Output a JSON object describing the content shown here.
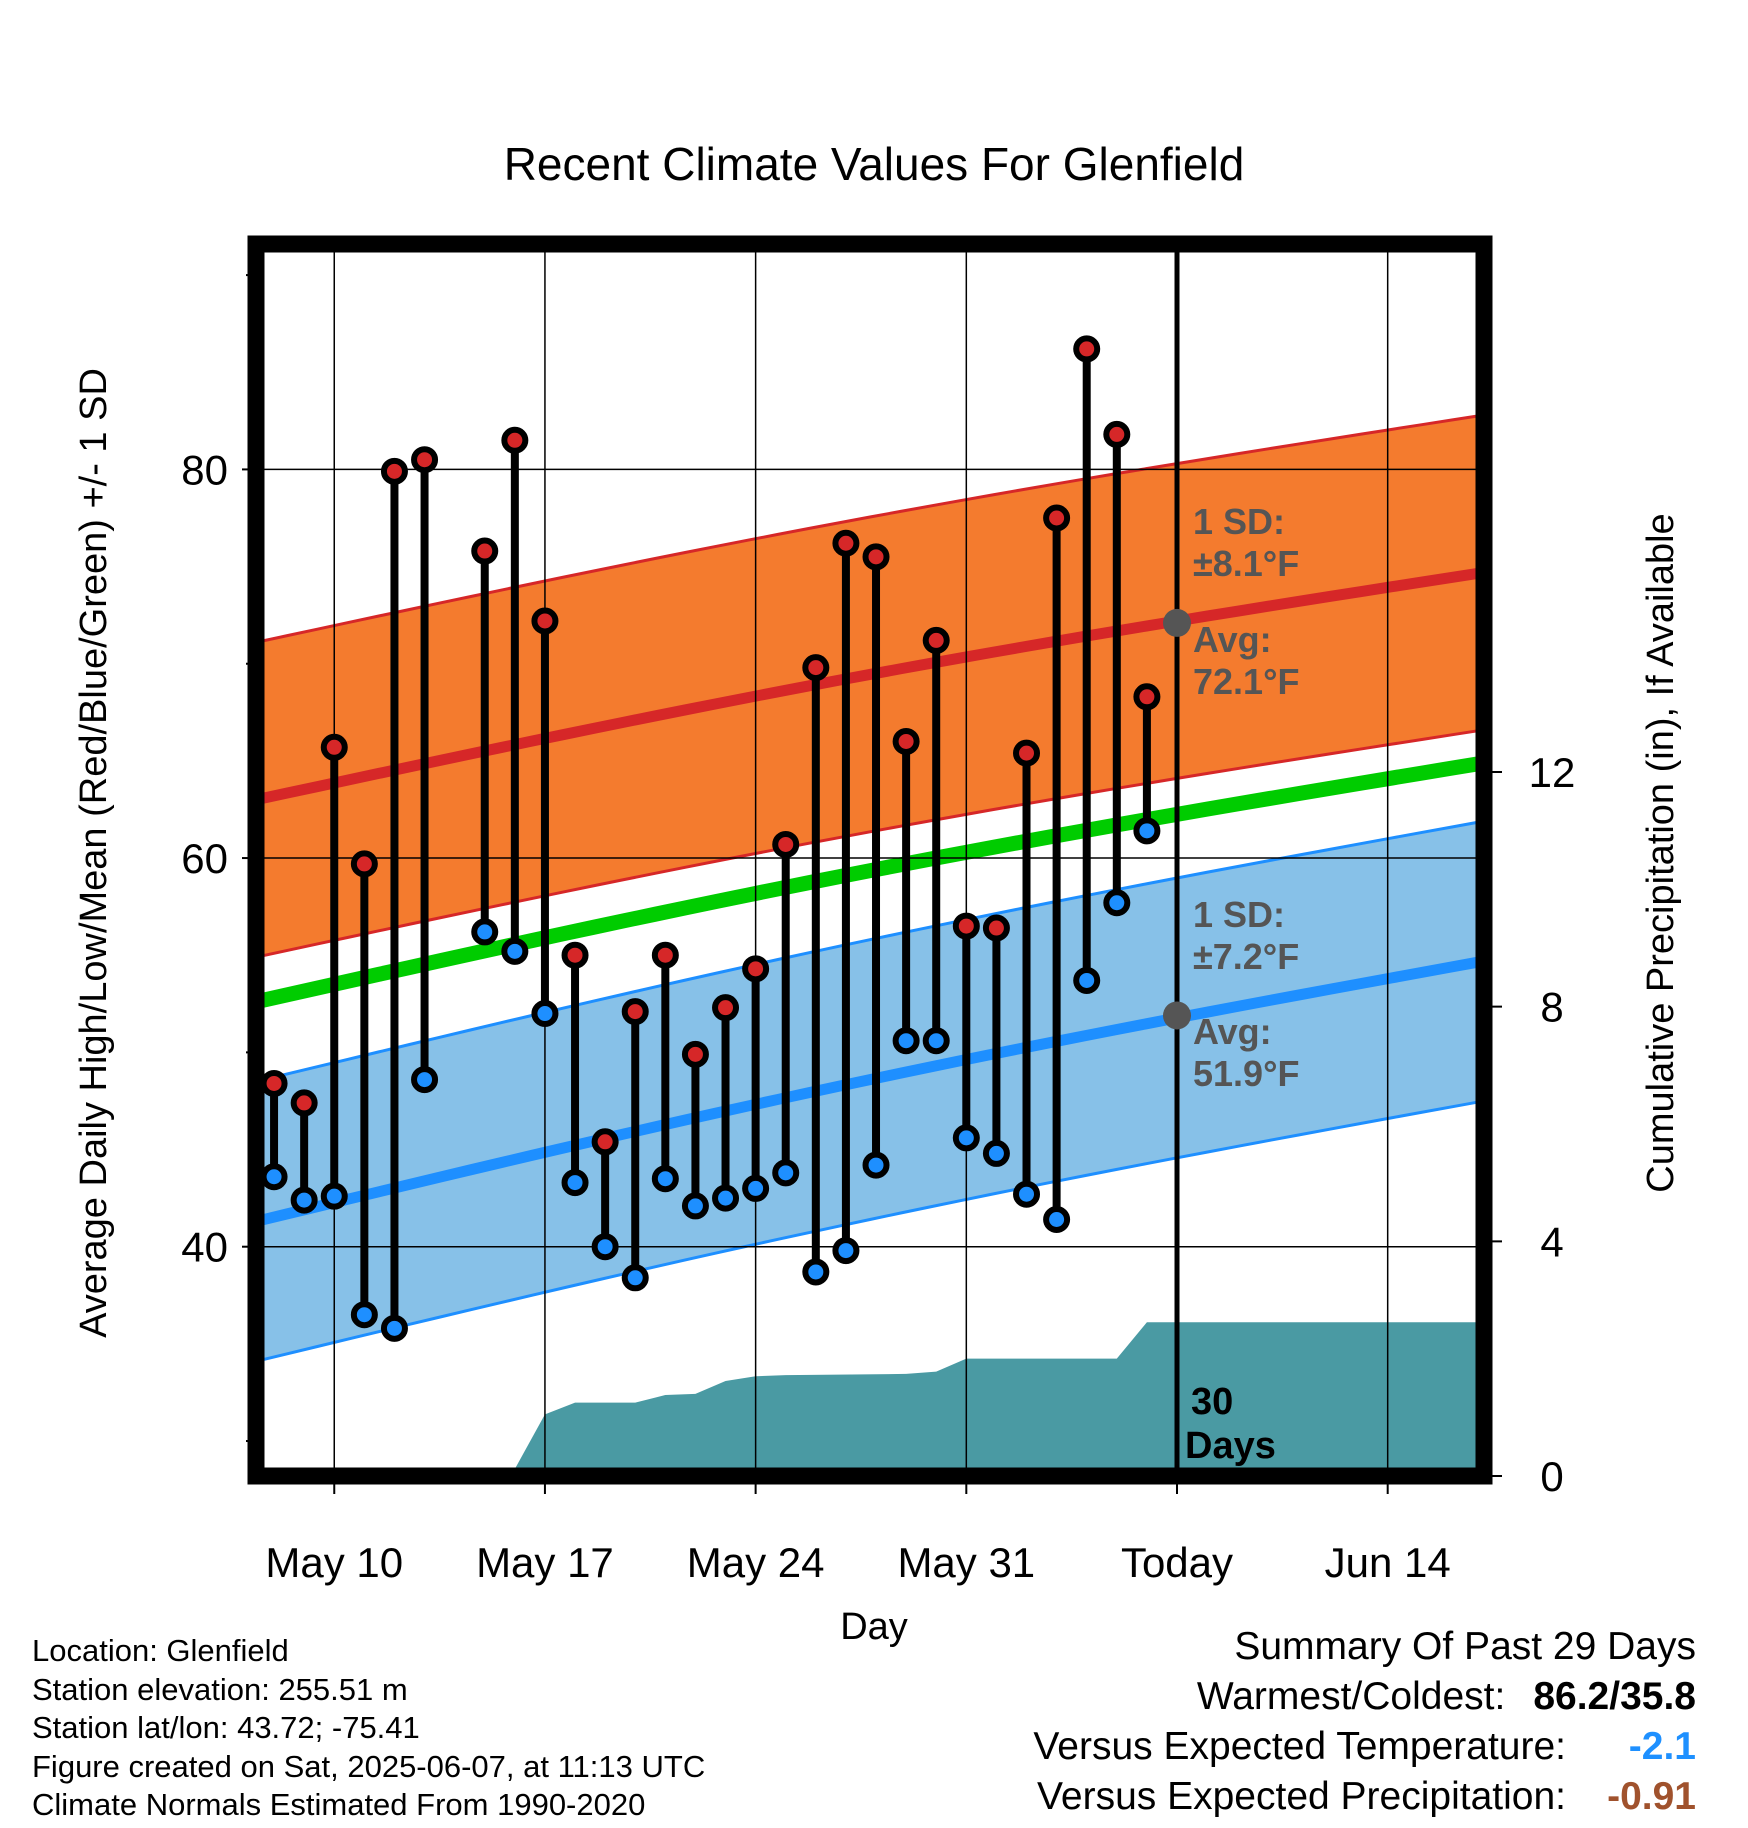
{
  "title": "Recent Climate Values For Glenfield",
  "colors": {
    "high_band": "#f47b2e",
    "high_line": "#d62728",
    "low_band": "#87c1e8",
    "low_line": "#1e8fff",
    "mean_line": "#00cc00",
    "precip_fill": "#4a9aa3",
    "high_marker": "#d62728",
    "low_marker": "#1e8fff",
    "avg_marker": "#555555"
  },
  "chart_data": {
    "type": "line",
    "title": "Recent Climate Values For Glenfield",
    "xlabel": "Day",
    "ylabel_left": "Average Daily High/Low/Mean (Red/Blue/Green) +/- 1 SD",
    "ylabel_right": "Cumulative Precipitation (in), If Available",
    "x_tick_labels": [
      "May 10",
      "May 17",
      "May 24",
      "May 31",
      "Today",
      "Jun 14"
    ],
    "x_tick_days": [
      0,
      7,
      14,
      21,
      28,
      35
    ],
    "x_range_days": [
      -2.6,
      38.2
    ],
    "left_ticks": [
      40,
      60,
      80
    ],
    "left_ylim": [
      28.2,
      91.6
    ],
    "right_ticks": [
      0,
      4,
      8,
      12
    ],
    "right_ylim": [
      0,
      21
    ],
    "grid": true,
    "today_day": 28,
    "days_label": [
      "30",
      "Days"
    ],
    "normals": {
      "avg_high_start": 63.0,
      "avg_high_end": 74.7,
      "avg_low_start": 41.3,
      "avg_low_end": 54.7,
      "mean_start": 52.6,
      "mean_end": 64.9,
      "high_sd": 8.1,
      "low_sd": 7.2
    },
    "annotations": {
      "high_sd_label": "1 SD:",
      "high_sd_value": "±8.1°F",
      "high_avg_label": "Avg:",
      "high_avg_value": "72.1°F",
      "low_sd_label": "1 SD:",
      "low_sd_value": "±7.2°F",
      "low_avg_label": "Avg:",
      "low_avg_value": "51.9°F",
      "today_avg_high": 72.1,
      "today_avg_low": 51.9
    },
    "daily": [
      {
        "day": -2,
        "high": 48.4,
        "low": 43.6
      },
      {
        "day": -1,
        "high": 47.4,
        "low": 42.4
      },
      {
        "day": 0,
        "high": 65.7,
        "low": 42.6
      },
      {
        "day": 1,
        "high": 59.7,
        "low": 36.5
      },
      {
        "day": 2,
        "high": 79.9,
        "low": 35.8
      },
      {
        "day": 3,
        "high": 80.5,
        "low": 48.6
      },
      {
        "day": 5,
        "high": 75.8,
        "low": 56.2
      },
      {
        "day": 6,
        "high": 81.5,
        "low": 55.2
      },
      {
        "day": 7,
        "high": 72.2,
        "low": 52.0
      },
      {
        "day": 8,
        "high": 55.0,
        "low": 43.3
      },
      {
        "day": 9,
        "high": 45.4,
        "low": 40.0
      },
      {
        "day": 10,
        "high": 52.1,
        "low": 38.4
      },
      {
        "day": 11,
        "high": 55.0,
        "low": 43.5
      },
      {
        "day": 12,
        "high": 49.9,
        "low": 42.1
      },
      {
        "day": 13,
        "high": 52.3,
        "low": 42.5
      },
      {
        "day": 14,
        "high": 54.3,
        "low": 43.0
      },
      {
        "day": 15,
        "high": 60.7,
        "low": 43.8
      },
      {
        "day": 16,
        "high": 69.8,
        "low": 38.7
      },
      {
        "day": 17,
        "high": 76.2,
        "low": 39.8
      },
      {
        "day": 18,
        "high": 75.5,
        "low": 44.2
      },
      {
        "day": 19,
        "high": 66.0,
        "low": 50.6
      },
      {
        "day": 20,
        "high": 71.2,
        "low": 50.6
      },
      {
        "day": 21,
        "high": 56.5,
        "low": 45.6
      },
      {
        "day": 22,
        "high": 56.4,
        "low": 44.8
      },
      {
        "day": 23,
        "high": 65.4,
        "low": 42.7
      },
      {
        "day": 24,
        "high": 77.5,
        "low": 41.4
      },
      {
        "day": 25,
        "high": 86.2,
        "low": 53.7
      },
      {
        "day": 26,
        "high": 81.8,
        "low": 57.7
      },
      {
        "day": 27,
        "high": 68.3,
        "low": 61.4
      }
    ],
    "precip_cumulative": [
      {
        "day": -2.6,
        "value": 0.0
      },
      {
        "day": -1.2,
        "value": 0.0
      },
      {
        "day": -1.0,
        "value": 0.08
      },
      {
        "day": 3.4,
        "value": 0.1
      },
      {
        "day": 6.0,
        "value": 0.12
      },
      {
        "day": 7.0,
        "value": 1.05
      },
      {
        "day": 8.0,
        "value": 1.25
      },
      {
        "day": 10.0,
        "value": 1.25
      },
      {
        "day": 11.0,
        "value": 1.38
      },
      {
        "day": 12.0,
        "value": 1.4
      },
      {
        "day": 13.0,
        "value": 1.62
      },
      {
        "day": 14.0,
        "value": 1.7
      },
      {
        "day": 15.0,
        "value": 1.72
      },
      {
        "day": 19.0,
        "value": 1.74
      },
      {
        "day": 20.0,
        "value": 1.78
      },
      {
        "day": 21.0,
        "value": 2.0
      },
      {
        "day": 26.0,
        "value": 2.0
      },
      {
        "day": 27.0,
        "value": 2.62
      },
      {
        "day": 38.2,
        "value": 2.62
      }
    ]
  },
  "info": {
    "location": "Location: Glenfield",
    "elevation": "Station elevation: 255.51 m",
    "latlon": "Station lat/lon: 43.72; -75.41",
    "created": "Figure created on Sat, 2025-06-07, at 11:13 UTC",
    "normals": "Climate Normals Estimated From 1990-2020"
  },
  "summary": {
    "heading": "Summary Of Past 29 Days",
    "warmest_label": "Warmest/Coldest:",
    "warmest_value": "86.2/35.8",
    "temp_label": "Versus Expected Temperature:",
    "temp_value": "-2.1",
    "precip_label": "Versus Expected Precipitation:",
    "precip_value": "-0.91"
  }
}
